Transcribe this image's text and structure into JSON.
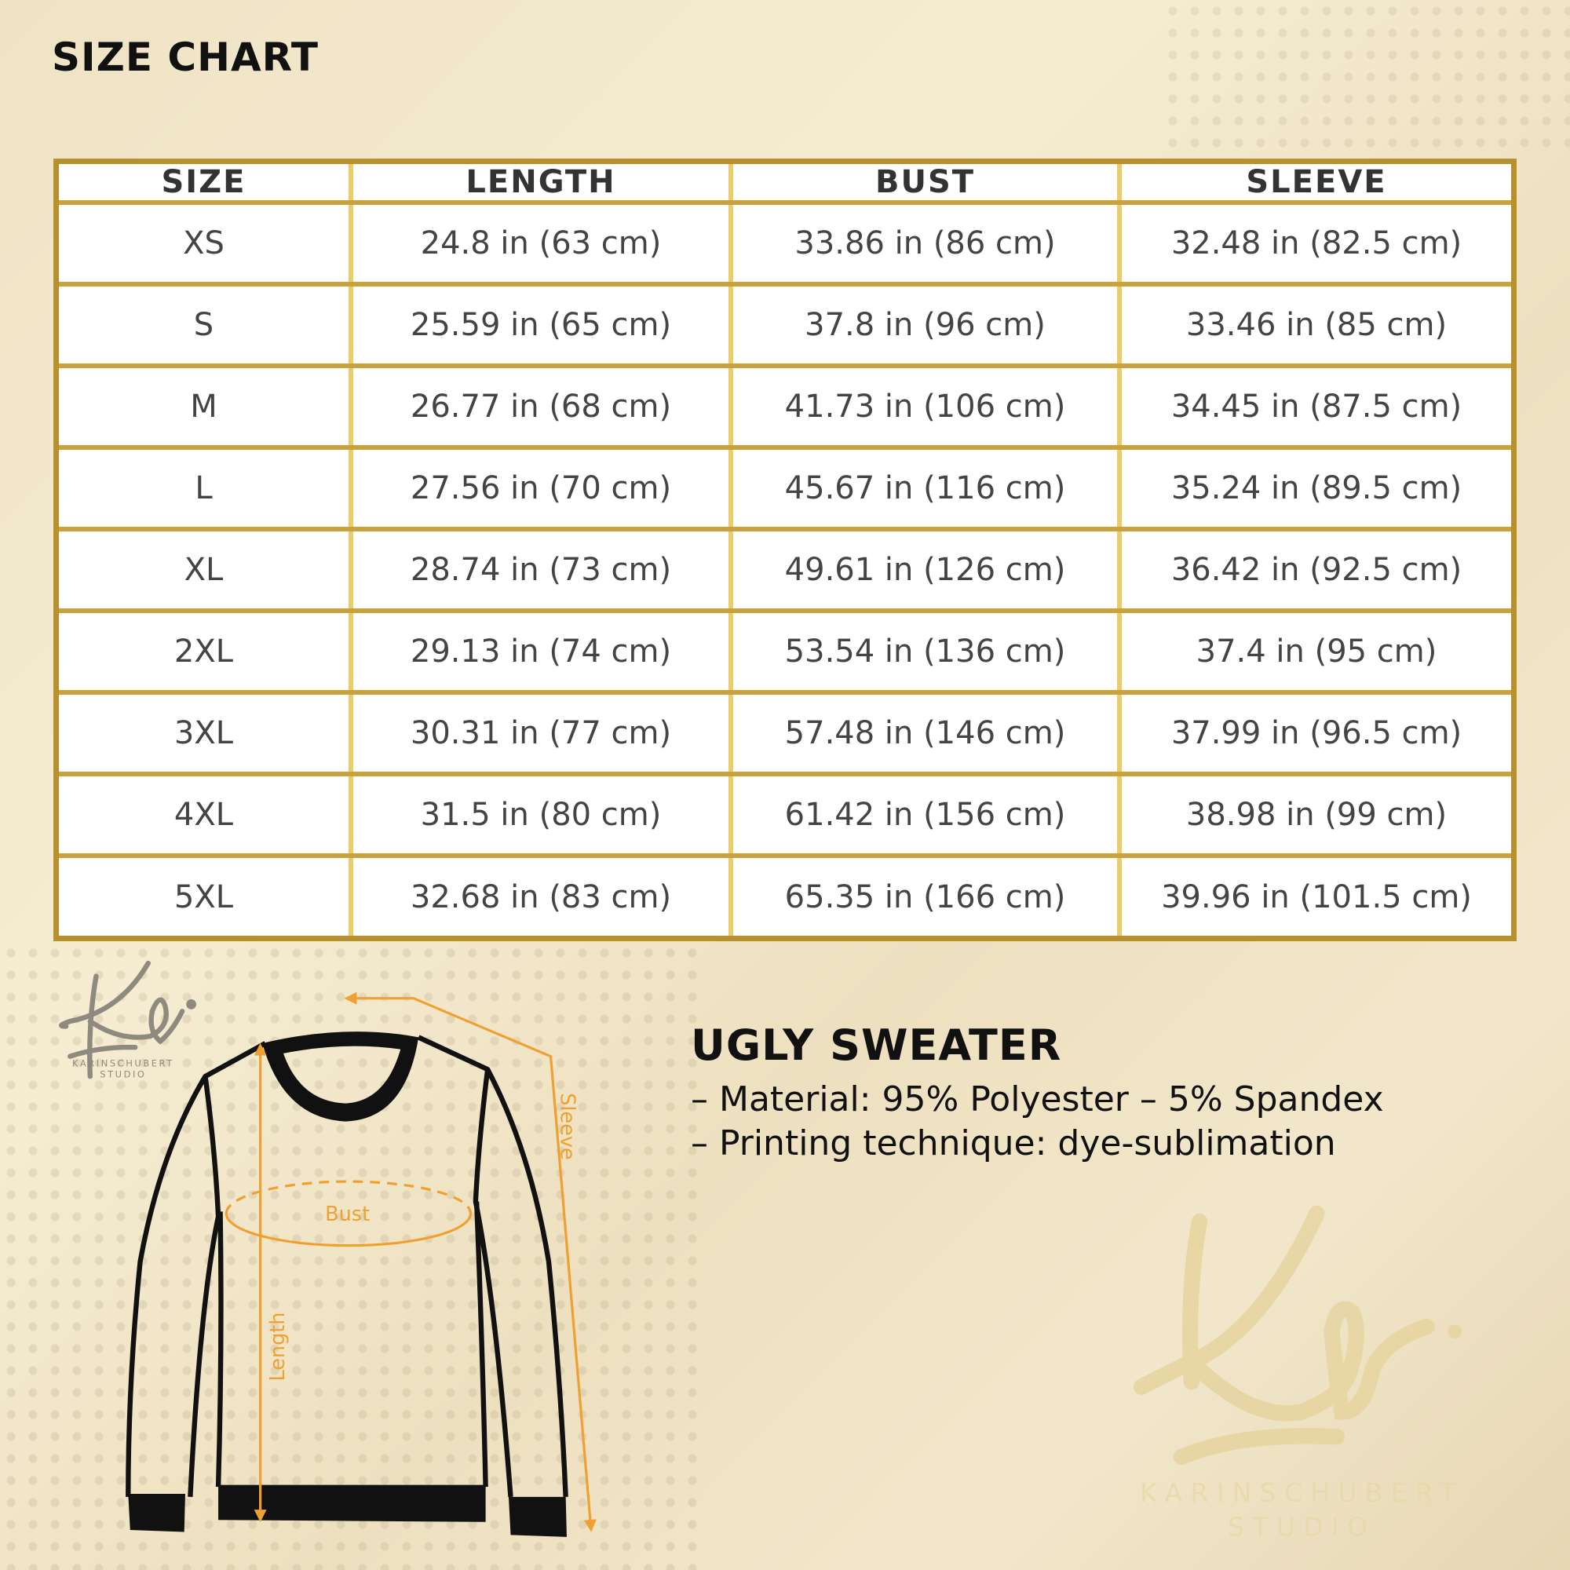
{
  "title": "SIZE CHART",
  "table": {
    "headers": [
      "SIZE",
      "LENGTH",
      "BUST",
      "SLEEVE"
    ],
    "rows": [
      [
        "XS",
        "24.8 in (63 cm)",
        "33.86 in (86 cm)",
        "32.48 in (82.5 cm)"
      ],
      [
        "S",
        "25.59 in (65 cm)",
        "37.8 in (96 cm)",
        "33.46 in (85 cm)"
      ],
      [
        "M",
        "26.77 in (68 cm)",
        "41.73 in (106 cm)",
        "34.45 in (87.5 cm)"
      ],
      [
        "L",
        "27.56 in (70 cm)",
        "45.67 in (116 cm)",
        "35.24 in (89.5 cm)"
      ],
      [
        "XL",
        "28.74 in (73 cm)",
        "49.61 in (126 cm)",
        "36.42 in (92.5 cm)"
      ],
      [
        "2XL",
        "29.13 in (74 cm)",
        "53.54 in (136 cm)",
        "37.4 in (95 cm)"
      ],
      [
        "3XL",
        "30.31 in (77 cm)",
        "57.48 in (146 cm)",
        "37.99 in (96.5 cm)"
      ],
      [
        "4XL",
        "31.5 in (80 cm)",
        "61.42 in (156 cm)",
        "38.98 in (99 cm)"
      ],
      [
        "5XL",
        "32.68 in (83 cm)",
        "65.35 in (166 cm)",
        "39.96 in (101.5 cm)"
      ]
    ]
  },
  "product": {
    "name": "UGLY SWEATER",
    "details": [
      "– Material: 95% Polyester – 5% Spandex",
      "– Printing technique: dye-sublimation"
    ]
  },
  "diagram": {
    "bust": "Bust",
    "length": "Length",
    "sleeve": "Sleeve",
    "accent_color": "#f0a030"
  },
  "logo": {
    "mark": "Ks.",
    "line1": "KARINSCHUBERT",
    "line2": "STUDIO"
  }
}
